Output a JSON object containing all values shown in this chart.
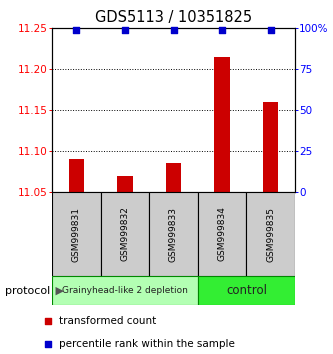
{
  "title": "GDS5113 / 10351825",
  "samples": [
    "GSM999831",
    "GSM999832",
    "GSM999833",
    "GSM999834",
    "GSM999835"
  ],
  "transformed_counts": [
    11.09,
    11.07,
    11.085,
    11.215,
    11.16
  ],
  "percentile_ranks": [
    99,
    99,
    99,
    99,
    99
  ],
  "ylim_left": [
    11.05,
    11.25
  ],
  "yticks_left": [
    11.05,
    11.1,
    11.15,
    11.2,
    11.25
  ],
  "yticks_right": [
    0,
    25,
    50,
    75,
    100
  ],
  "bar_color": "#cc0000",
  "dot_color": "#0000cc",
  "groups": [
    {
      "label": "Grainyhead-like 2 depletion",
      "samples_idx": [
        0,
        1,
        2
      ],
      "color": "#b3ffb3",
      "border": "#008800"
    },
    {
      "label": "control",
      "samples_idx": [
        3,
        4
      ],
      "color": "#33ee33",
      "border": "#008800"
    }
  ],
  "sample_box_color": "#cccccc",
  "protocol_label": "protocol",
  "legend_items": [
    {
      "color": "#cc0000",
      "label": "transformed count"
    },
    {
      "color": "#0000cc",
      "label": "percentile rank within the sample"
    }
  ]
}
